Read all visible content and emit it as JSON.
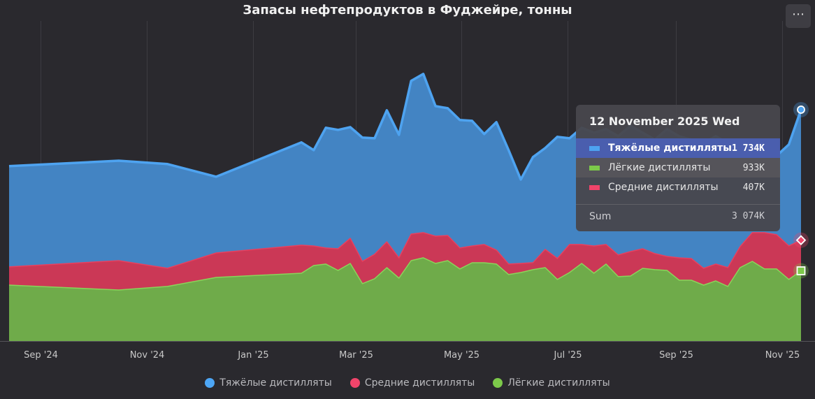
{
  "header": {
    "title": "Запасы нефтепродуктов в Фуджейре, тонны",
    "menu_label": "⋯",
    "menu_icon": "ellipsis-icon"
  },
  "tooltip": {
    "date": "12 November 2025 Wed",
    "rows": [
      {
        "name": "Тяжёлые дистилляты",
        "value": "1 734K",
        "color": "#4da3f0",
        "highlighted": true
      },
      {
        "name": "Лёгкие дистилляты",
        "value": "933K",
        "color": "#7cc94a"
      },
      {
        "name": "Средние дистилляты",
        "value": "407K",
        "color": "#f0446a"
      }
    ],
    "sum_label": "Sum",
    "sum_value": "3 074K"
  },
  "legend": [
    {
      "name": "Тяжёлые дистилляты",
      "color": "#4da6f5"
    },
    {
      "name": "Средние дистилляты",
      "color": "#f0446a"
    },
    {
      "name": "Лёгкие дистилляты",
      "color": "#7cc94a"
    }
  ],
  "chart_data": {
    "type": "area",
    "stacked": true,
    "title": "Запасы нефтепродуктов в Фуджейре, тонны",
    "xlabel": "",
    "ylabel": "",
    "unit": "K tonnes",
    "grid": "vertical",
    "legend_position": "bottom",
    "y_axis_visible": false,
    "ylim": [
      0,
      4160
    ],
    "xlim": [
      "2024-08-14",
      "2025-11-12"
    ],
    "x_ticks": [
      {
        "date": "2024-09-01",
        "label": "Sep '24"
      },
      {
        "date": "2024-11-01",
        "label": "Nov '24"
      },
      {
        "date": "2025-01-01",
        "label": "Jan '25"
      },
      {
        "date": "2025-03-01",
        "label": "Mar '25"
      },
      {
        "date": "2025-05-01",
        "label": "May '25"
      },
      {
        "date": "2025-07-01",
        "label": "Jul '25"
      },
      {
        "date": "2025-09-01",
        "label": "Sep '25"
      },
      {
        "date": "2025-11-01",
        "label": "Nov '25"
      }
    ],
    "x": [
      "2024-08-14",
      "2024-10-16",
      "2024-11-13",
      "2024-12-11",
      "2025-01-29",
      "2025-02-05",
      "2025-02-12",
      "2025-02-19",
      "2025-02-26",
      "2025-03-05",
      "2025-03-12",
      "2025-03-19",
      "2025-03-26",
      "2025-04-02",
      "2025-04-09",
      "2025-04-16",
      "2025-04-23",
      "2025-04-30",
      "2025-05-07",
      "2025-05-14",
      "2025-05-21",
      "2025-05-28",
      "2025-06-04",
      "2025-06-11",
      "2025-06-18",
      "2025-06-25",
      "2025-07-02",
      "2025-07-09",
      "2025-07-16",
      "2025-07-23",
      "2025-07-30",
      "2025-08-06",
      "2025-08-13",
      "2025-08-20",
      "2025-08-27",
      "2025-09-03",
      "2025-09-10",
      "2025-09-17",
      "2025-09-24",
      "2025-10-01",
      "2025-10-08",
      "2025-10-15",
      "2025-10-22",
      "2025-10-29",
      "2025-11-05",
      "2025-11-12"
    ],
    "series": [
      {
        "name": "Лёгкие дистилляты",
        "fill": "#6fab4a",
        "line": "#8ad45a",
        "values": [
          743,
          678,
          725,
          845,
          901,
          1003,
          1022,
          938,
          1031,
          762,
          827,
          975,
          836,
          1068,
          1106,
          1031,
          1068,
          957,
          1040,
          1040,
          1022,
          883,
          910,
          948,
          975,
          818,
          910,
          1031,
          901,
          1022,
          855,
          864,
          966,
          948,
          938,
          808,
          808,
          743,
          799,
          725,
          975,
          1059,
          957,
          957,
          818,
          933
        ]
      },
      {
        "name": "Средние дистилляты",
        "fill": "#cb3856",
        "line": "#e8405f",
        "values": [
          242,
          390,
          242,
          325,
          372,
          260,
          214,
          288,
          334,
          297,
          325,
          344,
          269,
          353,
          334,
          362,
          334,
          279,
          223,
          242,
          186,
          139,
          121,
          93,
          242,
          279,
          372,
          251,
          362,
          260,
          288,
          325,
          260,
          214,
          186,
          297,
          288,
          223,
          223,
          251,
          279,
          381,
          483,
          455,
          446,
          407
        ]
      },
      {
        "name": "Тяжёлые дистилляты",
        "fill": "#4384c3",
        "line": "#4ea3f0",
        "values": [
          1338,
          1328,
          1384,
          1013,
          1366,
          1273,
          1598,
          1579,
          1477,
          1644,
          1542,
          1747,
          1635,
          2035,
          2109,
          1728,
          1691,
          1700,
          1663,
          1468,
          1700,
          1514,
          1115,
          1403,
          1347,
          1616,
          1412,
          1551,
          1505,
          1533,
          1579,
          1672,
          1542,
          1514,
          1691,
          1616,
          1579,
          1663,
          1700,
          1654,
          1236,
          1143,
          1096,
          1050,
          1347,
          1734
        ]
      }
    ]
  }
}
